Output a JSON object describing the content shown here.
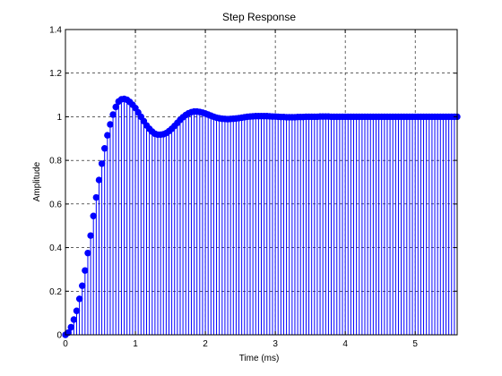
{
  "chart_data": {
    "type": "stem",
    "title": "Step Response",
    "xlabel": "Time (ms)",
    "ylabel": "Amplitude",
    "xlim": [
      0,
      5.6
    ],
    "ylim": [
      0,
      1.4
    ],
    "xticks": [
      "0",
      "1",
      "2",
      "3",
      "4",
      "5"
    ],
    "yticks": [
      "0",
      "0.2",
      "0.4",
      "0.6",
      "0.8",
      "1",
      "1.2",
      "1.4"
    ],
    "grid": true,
    "sample_interval": 0.04,
    "series": [
      {
        "color": "#0000ff",
        "x": [
          0.0,
          0.04,
          0.08,
          0.12,
          0.16,
          0.2,
          0.24,
          0.28,
          0.32,
          0.36,
          0.4,
          0.44,
          0.48,
          0.52,
          0.56,
          0.6,
          0.64,
          0.68,
          0.72,
          0.76,
          0.8,
          0.84,
          0.88,
          0.92,
          0.96,
          1.0,
          1.04,
          1.08,
          1.12,
          1.16,
          1.2,
          1.24,
          1.28,
          1.32,
          1.36,
          1.4,
          1.44,
          1.48,
          1.52,
          1.56,
          1.6,
          1.64,
          1.68,
          1.72,
          1.76,
          1.8,
          1.84,
          1.88,
          1.92,
          1.96,
          2.0,
          2.04,
          2.08,
          2.12,
          2.16,
          2.2,
          2.24,
          2.28,
          2.32,
          2.36,
          2.4,
          2.44,
          2.48,
          2.52,
          2.56,
          2.6,
          2.64,
          2.68,
          2.72,
          2.76,
          2.8,
          2.84,
          2.88,
          2.92,
          2.96,
          3.0,
          3.04,
          3.08,
          3.12,
          3.16,
          3.2,
          3.24,
          3.28,
          3.32,
          3.36,
          3.4,
          3.44,
          3.48,
          3.52,
          3.56,
          3.6,
          3.64,
          3.68,
          3.72,
          3.76,
          3.8,
          3.84,
          3.88,
          3.92,
          3.96,
          4.0,
          4.04,
          4.08,
          4.12,
          4.16,
          4.2,
          4.24,
          4.28,
          4.32,
          4.36,
          4.4,
          4.44,
          4.48,
          4.52,
          4.56,
          4.6,
          4.64,
          4.68,
          4.72,
          4.76,
          4.8,
          4.84,
          4.88,
          4.92,
          4.96,
          5.0,
          5.04,
          5.08,
          5.12,
          5.16,
          5.2,
          5.24,
          5.28,
          5.32,
          5.36,
          5.4,
          5.44,
          5.48,
          5.52,
          5.56,
          5.6
        ],
        "y": [
          0.0,
          0.01,
          0.035,
          0.07,
          0.11,
          0.165,
          0.225,
          0.295,
          0.375,
          0.455,
          0.545,
          0.63,
          0.71,
          0.785,
          0.855,
          0.915,
          0.965,
          1.01,
          1.045,
          1.07,
          1.08,
          1.082,
          1.078,
          1.068,
          1.055,
          1.04,
          1.02,
          1.0,
          0.98,
          0.96,
          0.945,
          0.932,
          0.922,
          0.918,
          0.918,
          0.92,
          0.925,
          0.934,
          0.945,
          0.958,
          0.972,
          0.986,
          0.998,
          1.008,
          1.016,
          1.021,
          1.024,
          1.024,
          1.022,
          1.019,
          1.015,
          1.01,
          1.005,
          1.0,
          0.996,
          0.993,
          0.991,
          0.99,
          0.989,
          0.99,
          0.991,
          0.992,
          0.994,
          0.996,
          0.998,
          1.0,
          1.001,
          1.002,
          1.003,
          1.003,
          1.003,
          1.003,
          1.003,
          1.002,
          1.001,
          1.001,
          1.0,
          0.999,
          0.999,
          0.998,
          0.998,
          0.998,
          0.998,
          0.999,
          0.999,
          0.999,
          1.0,
          1.0,
          1.0,
          1.0,
          1.0,
          1.001,
          1.001,
          1.001,
          1.001,
          1.0,
          1.0,
          1.0,
          1.0,
          1.0,
          1.0,
          1.0,
          1.0,
          1.0,
          1.0,
          1.0,
          1.0,
          1.0,
          1.0,
          1.0,
          1.0,
          1.0,
          1.0,
          1.0,
          1.0,
          1.0,
          1.0,
          1.0,
          1.0,
          1.0,
          1.0,
          1.0,
          1.0,
          1.0,
          1.0,
          1.0,
          1.0,
          1.0,
          1.0,
          1.0,
          1.0,
          1.0,
          1.0,
          1.0,
          1.0,
          1.0,
          1.0,
          1.0,
          1.0,
          1.0,
          1.0
        ]
      }
    ]
  }
}
